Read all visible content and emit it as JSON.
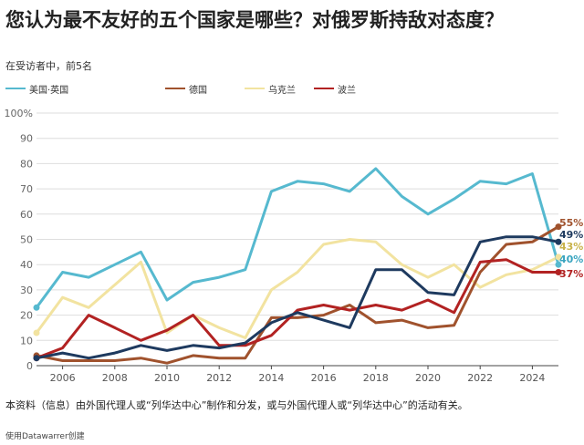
{
  "title": "您认为最不友好的五个国家是哪些？对俄罗斯持敌对态度？",
  "subtitle": "在受访者中，前5名",
  "source_note": "本资料（信息）由外国代理人或“列华达中心”制作和分发，或与外国代理人或“列华达中心”的活动有关。",
  "credit": "使用Datawarrer创建",
  "chart_data": {
    "type": "line",
    "title": "您认为最不友好的五个国家是哪些？对俄罗斯持敌对态度？",
    "subtitle": "在受访者中，前5名",
    "xlabel": "",
    "ylabel": "",
    "ylim": [
      0,
      100
    ],
    "xlim": [
      2005,
      2025
    ],
    "x": [
      2005,
      2006,
      2007,
      2008,
      2009,
      2010,
      2011,
      2012,
      2013,
      2014,
      2015,
      2016,
      2017,
      2018,
      2019,
      2020,
      2021,
      2022,
      2023,
      2024,
      2025
    ],
    "x_ticks": [
      "2006",
      "2008",
      "2010",
      "2012",
      "2014",
      "2016",
      "2018",
      "2020",
      "2022",
      "2024"
    ],
    "y_ticks": [
      "0",
      "10",
      "20",
      "30",
      "40",
      "50",
      "60",
      "70",
      "80",
      "90",
      "100%"
    ],
    "grid": true,
    "legend_position": "top",
    "series": [
      {
        "name": "美国·英国",
        "color": "#56b9cf",
        "end_label": "40%",
        "values": [
          23,
          37,
          35,
          40,
          45,
          26,
          33,
          35,
          38,
          69,
          73,
          72,
          69,
          78,
          67,
          60,
          66,
          73,
          72,
          76,
          40
        ]
      },
      {
        "name": "德国",
        "color": "#a0522d",
        "end_label": "55%",
        "values": [
          4,
          2,
          2,
          2,
          3,
          1,
          4,
          3,
          3,
          19,
          19,
          20,
          24,
          17,
          18,
          15,
          16,
          37,
          48,
          49,
          55
        ]
      },
      {
        "name": "乌克兰",
        "color": "#f2e3a0",
        "end_label": "43%",
        "values": [
          13,
          27,
          23,
          32,
          41,
          13,
          20,
          15,
          11,
          30,
          37,
          48,
          50,
          49,
          40,
          35,
          40,
          31,
          36,
          38,
          43
        ]
      },
      {
        "name": "",
        "color": "#1e3a5f",
        "end_label": "49%",
        "values": [
          3,
          5,
          3,
          5,
          8,
          6,
          8,
          7,
          9,
          17,
          21,
          18,
          15,
          38,
          38,
          29,
          28,
          49,
          51,
          51,
          49
        ]
      },
      {
        "name": "波兰",
        "color": "#b22222",
        "end_label": "37%",
        "values": [
          3,
          7,
          20,
          15,
          10,
          14,
          20,
          8,
          8,
          12,
          22,
          24,
          22,
          24,
          22,
          26,
          21,
          41,
          42,
          37,
          37
        ]
      }
    ]
  }
}
